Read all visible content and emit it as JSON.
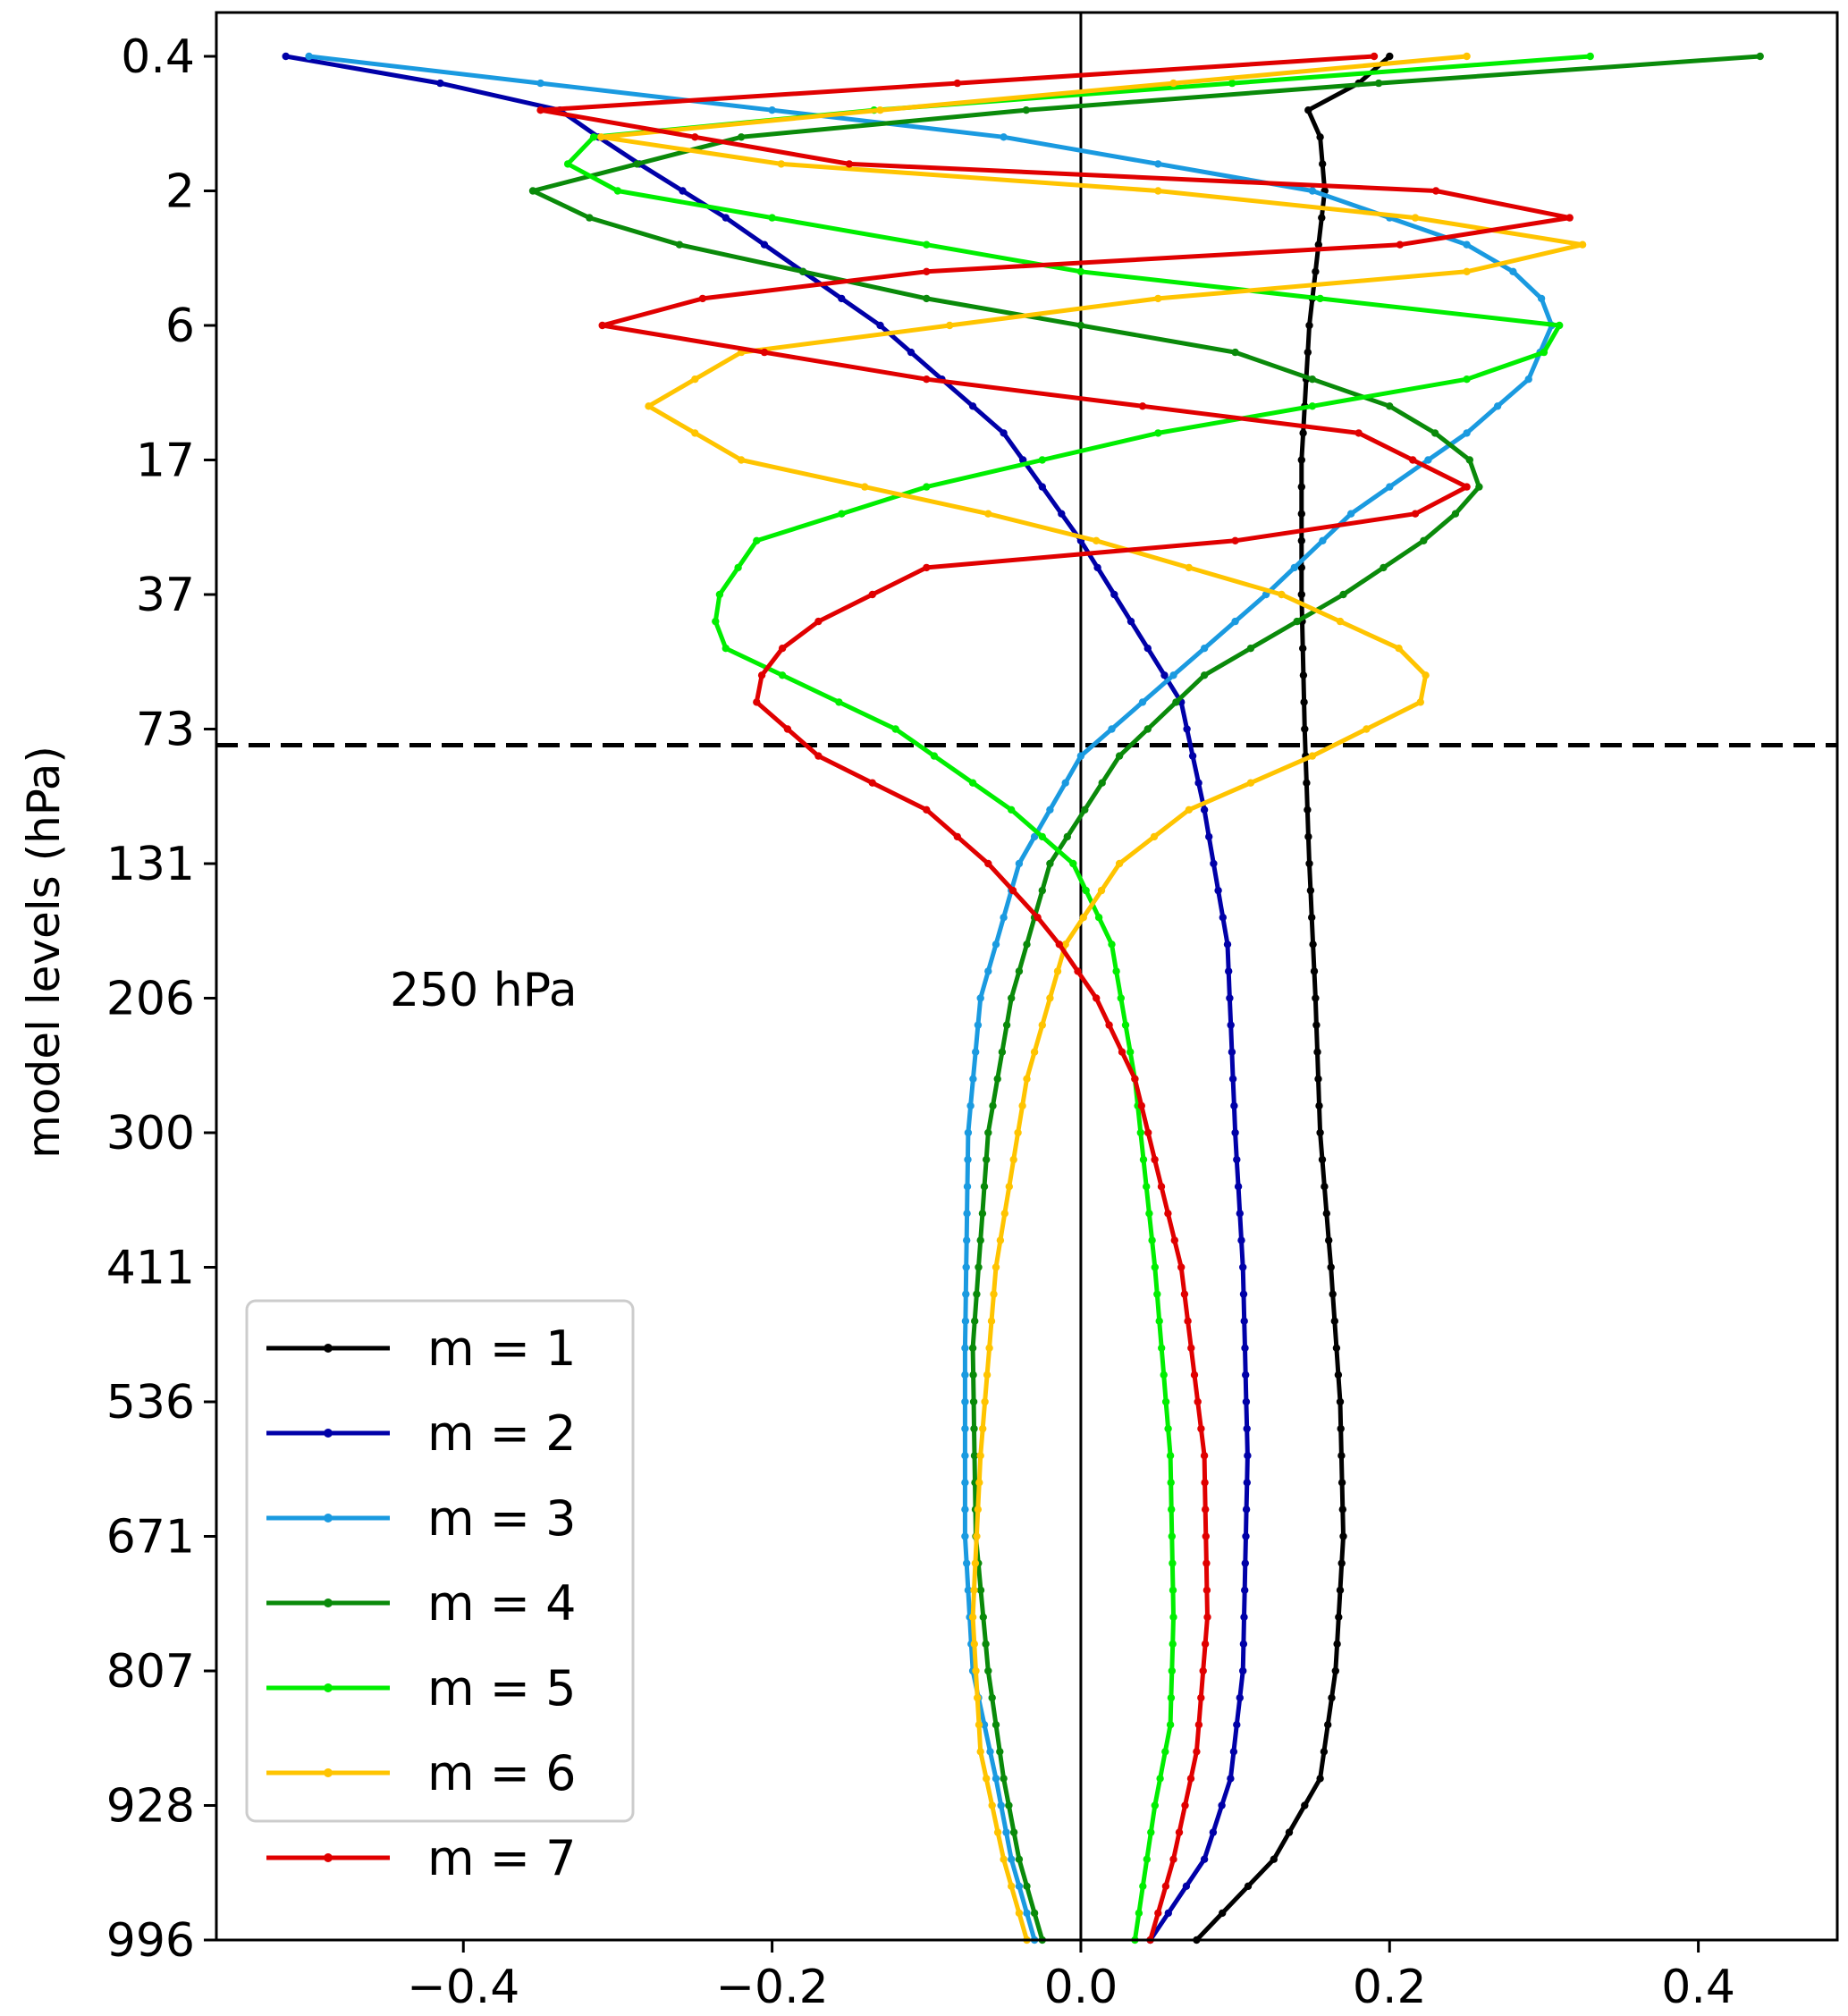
{
  "chart_data": {
    "type": "line",
    "title": "",
    "xlabel": "",
    "ylabel": "model levels (hPa)",
    "xlim": [
      -0.56,
      0.49
    ],
    "y_scale": "model level index (0 = top, 70 = surface)",
    "x_ticks": [
      -0.4,
      -0.2,
      0.0,
      0.2,
      0.4
    ],
    "x_tick_labels": [
      "−0.4",
      "−0.2",
      "0.0",
      "0.2",
      "0.4"
    ],
    "y_ticks": [
      "0.4",
      "2",
      "6",
      "17",
      "37",
      "73",
      "131",
      "206",
      "300",
      "411",
      "536",
      "671",
      "807",
      "928",
      "996"
    ],
    "grid": false,
    "legend_position": "lower-left",
    "zero_line": true,
    "annotation": {
      "text": "250 hPa",
      "level": 242
    },
    "series": [
      {
        "name": "m = 1",
        "color": "#000000",
        "knots": [
          [
            0,
            0.2
          ],
          [
            1,
            0.18
          ],
          [
            1.7,
            0.145
          ],
          [
            3,
            0.155
          ],
          [
            5,
            0.158
          ],
          [
            10,
            0.148
          ],
          [
            15,
            0.143
          ],
          [
            20,
            0.143
          ],
          [
            25,
            0.145
          ],
          [
            30,
            0.148
          ],
          [
            35,
            0.152
          ],
          [
            40,
            0.155
          ],
          [
            45,
            0.162
          ],
          [
            50,
            0.168
          ],
          [
            55,
            0.17
          ],
          [
            60,
            0.165
          ],
          [
            64,
            0.155
          ],
          [
            67,
            0.125
          ],
          [
            70,
            0.075
          ]
        ]
      },
      {
        "name": "m = 2",
        "color": "#0000a8",
        "knots": [
          [
            0,
            -0.515
          ],
          [
            1.7,
            -0.345
          ],
          [
            3.5,
            -0.3
          ],
          [
            6,
            -0.23
          ],
          [
            10,
            -0.13
          ],
          [
            14,
            -0.05
          ],
          [
            18,
            0.0
          ],
          [
            24,
            0.065
          ],
          [
            28,
            0.08
          ],
          [
            33,
            0.095
          ],
          [
            40,
            0.1
          ],
          [
            45,
            0.105
          ],
          [
            52,
            0.108
          ],
          [
            60,
            0.105
          ],
          [
            64,
            0.097
          ],
          [
            67,
            0.08
          ],
          [
            70,
            0.045
          ]
        ]
      },
      {
        "name": "m = 3",
        "color": "#1a9ae0",
        "knots": [
          [
            0,
            -0.5
          ],
          [
            3,
            -0.05
          ],
          [
            5,
            0.15
          ],
          [
            7,
            0.25
          ],
          [
            8.5,
            0.295
          ],
          [
            10,
            0.305
          ],
          [
            12,
            0.29
          ],
          [
            14,
            0.25
          ],
          [
            17,
            0.175
          ],
          [
            20,
            0.12
          ],
          [
            23,
            0.06
          ],
          [
            26,
            0.0
          ],
          [
            30,
            -0.04
          ],
          [
            35,
            -0.065
          ],
          [
            40,
            -0.073
          ],
          [
            48,
            -0.075
          ],
          [
            55,
            -0.075
          ],
          [
            60,
            -0.07
          ],
          [
            64,
            -0.055
          ],
          [
            67,
            -0.045
          ],
          [
            70,
            -0.03
          ]
        ]
      },
      {
        "name": "m = 4",
        "color": "#0a8a0a",
        "knots": [
          [
            0,
            0.44
          ],
          [
            1.7,
            0.02
          ],
          [
            3,
            -0.22
          ],
          [
            5,
            -0.355
          ],
          [
            6.5,
            -0.3
          ],
          [
            9,
            -0.1
          ],
          [
            11,
            0.1
          ],
          [
            13,
            0.2
          ],
          [
            14.7,
            0.25
          ],
          [
            16,
            0.258
          ],
          [
            17.5,
            0.235
          ],
          [
            20,
            0.17
          ],
          [
            23,
            0.08
          ],
          [
            26,
            0.025
          ],
          [
            30,
            -0.02
          ],
          [
            35,
            -0.045
          ],
          [
            40,
            -0.06
          ],
          [
            48,
            -0.07
          ],
          [
            55,
            -0.068
          ],
          [
            60,
            -0.06
          ],
          [
            64,
            -0.05
          ],
          [
            67,
            -0.04
          ],
          [
            70,
            -0.025
          ]
        ]
      },
      {
        "name": "m = 5",
        "color": "#00ee00",
        "knots": [
          [
            0,
            0.33
          ],
          [
            2.5,
            -0.25
          ],
          [
            3.3,
            -0.355
          ],
          [
            5,
            -0.3
          ],
          [
            8,
            0.0
          ],
          [
            10,
            0.31
          ],
          [
            10.7,
            0.315
          ],
          [
            12,
            0.25
          ],
          [
            14,
            0.05
          ],
          [
            16,
            -0.1
          ],
          [
            18,
            -0.21
          ],
          [
            20.5,
            -0.24
          ],
          [
            22,
            -0.23
          ],
          [
            25,
            -0.12
          ],
          [
            28,
            -0.045
          ],
          [
            30,
            -0.005
          ],
          [
            33,
            0.02
          ],
          [
            38,
            0.035
          ],
          [
            45,
            0.048
          ],
          [
            52,
            0.058
          ],
          [
            58,
            0.06
          ],
          [
            62,
            0.058
          ],
          [
            65,
            0.048
          ],
          [
            70,
            0.035
          ]
        ]
      },
      {
        "name": "m = 6",
        "color": "#ffc400",
        "knots": [
          [
            0,
            0.25
          ],
          [
            2,
            -0.13
          ],
          [
            3.3,
            -0.365
          ],
          [
            5,
            0.05
          ],
          [
            6.5,
            0.3
          ],
          [
            7.5,
            0.35
          ],
          [
            9,
            0.05
          ],
          [
            11,
            -0.22
          ],
          [
            13,
            -0.28
          ],
          [
            15,
            -0.22
          ],
          [
            17.5,
            -0.02
          ],
          [
            20,
            0.13
          ],
          [
            22.5,
            0.225
          ],
          [
            24,
            0.22
          ],
          [
            26,
            0.15
          ],
          [
            28,
            0.07
          ],
          [
            30,
            0.025
          ],
          [
            33,
            -0.01
          ],
          [
            38,
            -0.035
          ],
          [
            45,
            -0.055
          ],
          [
            52,
            -0.065
          ],
          [
            58,
            -0.07
          ],
          [
            63,
            -0.065
          ],
          [
            67,
            -0.05
          ],
          [
            70,
            -0.035
          ]
        ]
      },
      {
        "name": "m = 7",
        "color": "#e00000",
        "knots": [
          [
            0,
            0.19
          ],
          [
            2,
            -0.35
          ],
          [
            4,
            -0.15
          ],
          [
            5,
            0.23
          ],
          [
            6.5,
            0.36
          ],
          [
            8,
            -0.1
          ],
          [
            9,
            -0.245
          ],
          [
            10,
            -0.31
          ],
          [
            12,
            -0.1
          ],
          [
            14,
            0.18
          ],
          [
            16,
            0.25
          ],
          [
            17.5,
            0.2
          ],
          [
            19,
            -0.1
          ],
          [
            21,
            -0.17
          ],
          [
            22.5,
            -0.205
          ],
          [
            24,
            -0.21
          ],
          [
            26,
            -0.17
          ],
          [
            28,
            -0.1
          ],
          [
            30,
            -0.06
          ],
          [
            32.5,
            -0.02
          ],
          [
            35,
            0.01
          ],
          [
            38,
            0.035
          ],
          [
            45,
            0.065
          ],
          [
            52,
            0.08
          ],
          [
            58,
            0.082
          ],
          [
            63,
            0.075
          ],
          [
            67,
            0.06
          ],
          [
            70,
            0.045
          ]
        ]
      }
    ]
  }
}
